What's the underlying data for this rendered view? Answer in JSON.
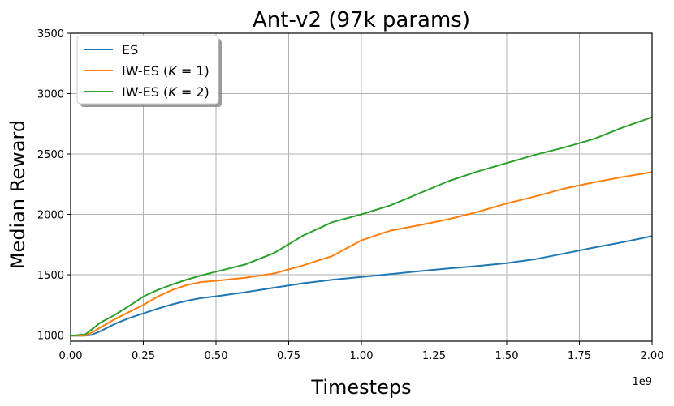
{
  "chart_data": {
    "type": "line",
    "title": "Ant-v2 (97k params)",
    "xlabel": "Timesteps",
    "ylabel": "Median Reward",
    "x_offset_label": "1e9",
    "xlim": [
      0,
      2.0
    ],
    "ylim": [
      950,
      3500
    ],
    "x_ticks": [
      0,
      0.25,
      0.5,
      0.75,
      1.0,
      1.25,
      1.5,
      1.75,
      2.0
    ],
    "x_tick_labels": [
      "0.00",
      "0.25",
      "0.50",
      "0.75",
      "1.00",
      "1.25",
      "1.50",
      "1.75",
      "2.00"
    ],
    "y_ticks": [
      1000,
      1500,
      2000,
      2500,
      3000,
      3500
    ],
    "y_tick_labels": [
      "1000",
      "1500",
      "2000",
      "2500",
      "3000",
      "3500"
    ],
    "grid": true,
    "legend_position": "top-left",
    "series": [
      {
        "name": "ES",
        "color": "#1f77b4",
        "x": [
          0,
          0.04,
          0.07,
          0.1,
          0.15,
          0.2,
          0.25,
          0.3,
          0.35,
          0.4,
          0.45,
          0.5,
          0.6,
          0.7,
          0.8,
          0.9,
          1.0,
          1.1,
          1.2,
          1.3,
          1.4,
          1.5,
          1.6,
          1.7,
          1.8,
          1.9,
          2.0
        ],
        "y": [
          995,
          995,
          1000,
          1030,
          1090,
          1140,
          1180,
          1220,
          1255,
          1285,
          1308,
          1322,
          1355,
          1393,
          1430,
          1458,
          1482,
          1505,
          1530,
          1552,
          1572,
          1596,
          1630,
          1677,
          1725,
          1770,
          1820
        ]
      },
      {
        "name": "IW-ES (K = 1)",
        "name_label": "IW-ES (",
        "name_k": "K",
        "name_eq": " = 1)",
        "color": "#ff7f0e",
        "x": [
          0,
          0.05,
          0.08,
          0.1,
          0.15,
          0.2,
          0.25,
          0.3,
          0.35,
          0.4,
          0.45,
          0.5,
          0.6,
          0.7,
          0.8,
          0.9,
          1.0,
          1.1,
          1.2,
          1.3,
          1.4,
          1.5,
          1.6,
          1.7,
          1.8,
          1.9,
          2.0
        ],
        "y": [
          995,
          995,
          1030,
          1060,
          1130,
          1190,
          1250,
          1320,
          1375,
          1415,
          1440,
          1450,
          1475,
          1510,
          1578,
          1655,
          1785,
          1865,
          1910,
          1960,
          2020,
          2090,
          2150,
          2215,
          2265,
          2310,
          2350
        ]
      },
      {
        "name": "IW-ES (K = 2)",
        "name_label": "IW-ES (",
        "name_k": "K",
        "name_eq": " = 2)",
        "color": "#2ca02c",
        "x": [
          0,
          0.05,
          0.08,
          0.1,
          0.15,
          0.2,
          0.25,
          0.3,
          0.35,
          0.4,
          0.45,
          0.5,
          0.6,
          0.7,
          0.8,
          0.9,
          1.0,
          1.1,
          1.2,
          1.3,
          1.4,
          1.5,
          1.6,
          1.7,
          1.8,
          1.9,
          2.0
        ],
        "y": [
          995,
          1005,
          1060,
          1100,
          1165,
          1240,
          1320,
          1375,
          1420,
          1460,
          1495,
          1525,
          1585,
          1680,
          1825,
          1935,
          2000,
          2075,
          2175,
          2275,
          2355,
          2425,
          2495,
          2555,
          2625,
          2720,
          2805
        ]
      }
    ]
  }
}
